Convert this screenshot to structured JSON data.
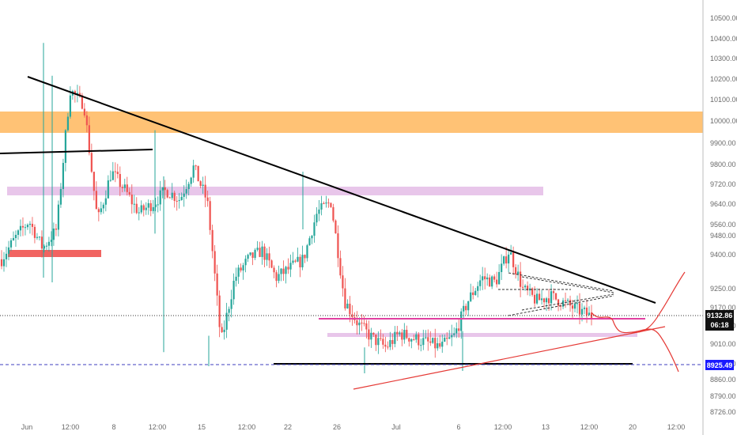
{
  "chart_data": {
    "type": "candlestick",
    "y_ticks": [
      "10500.00",
      "10400.00",
      "10300.00",
      "10200.00",
      "10100.00",
      "10000.00",
      "9900.00",
      "9800.00",
      "9720.00",
      "9640.00",
      "9560.00",
      "9480.00",
      "9400.00",
      "9250.00",
      "9170.00",
      "9090.00",
      "9010.00",
      "8930.00",
      "8860.00",
      "8790.00",
      "8726.00"
    ],
    "x_ticks": [
      "Jun",
      "12:00",
      "8",
      "12:00",
      "15",
      "12:00",
      "22",
      "26",
      "Jul",
      "6",
      "12:00",
      "13",
      "12:00",
      "20",
      "12:00"
    ],
    "current_price": "9132.86",
    "countdown": "06:18",
    "support_price": "8925.49",
    "price_path": [
      [
        "Jun",
        9380
      ],
      [
        "Jun",
        9480
      ],
      [
        "Jun",
        9560
      ],
      [
        "Jun",
        9430
      ],
      [
        "Jun",
        9520
      ],
      [
        "Jun",
        10150
      ],
      [
        "Jun",
        10080
      ],
      [
        "12:00",
        9560
      ],
      [
        "12:00",
        9780
      ],
      [
        "12:00",
        9700
      ],
      [
        "8",
        9600
      ],
      [
        "8",
        9640
      ],
      [
        "8",
        9700
      ],
      [
        "12:00",
        9660
      ],
      [
        "12:00",
        9800
      ],
      [
        "12:00",
        9650
      ],
      [
        "15",
        9020
      ],
      [
        "15",
        9300
      ],
      [
        "15",
        9380
      ],
      [
        "12:00",
        9420
      ],
      [
        "12:00",
        9300
      ],
      [
        "12:00",
        9340
      ],
      [
        "22",
        9380
      ],
      [
        "22",
        9600
      ],
      [
        "22",
        9650
      ],
      [
        "26",
        9200
      ],
      [
        "26",
        9100
      ],
      [
        "26",
        9040
      ],
      [
        "26",
        9000
      ],
      [
        "Jul",
        9060
      ],
      [
        "Jul",
        9040
      ],
      [
        "Jul",
        9020
      ],
      [
        "6",
        9000
      ],
      [
        "6",
        9050
      ],
      [
        "6",
        9200
      ],
      [
        "12:00",
        9300
      ],
      [
        "12:00",
        9280
      ],
      [
        "12:00",
        9420
      ],
      [
        "12:00",
        9250
      ],
      [
        "13",
        9200
      ],
      [
        "13",
        9220
      ],
      [
        "12:00",
        9190
      ],
      [
        "12:00",
        9160
      ],
      [
        "12:00",
        9132
      ]
    ],
    "horizontal_lines": [
      {
        "price": 9132.86,
        "style": "dotted",
        "color": "#333333"
      },
      {
        "price": 8925.49,
        "style": "dashed",
        "color": "#3f3fbf"
      }
    ],
    "annotations": [
      {
        "kind": "descending-resistance",
        "color": "#000000"
      },
      {
        "kind": "rising-support",
        "color": "#e53935"
      },
      {
        "kind": "support-zone",
        "color": "#ffbb66"
      },
      {
        "kind": "pink-zone",
        "color": "#e8c6ea"
      },
      {
        "kind": "red-zone",
        "color": "#ef5350"
      },
      {
        "kind": "symmetrical-triangle",
        "color": "#333333"
      },
      {
        "kind": "projected-path",
        "color": "#e53935"
      }
    ],
    "grid": false
  }
}
